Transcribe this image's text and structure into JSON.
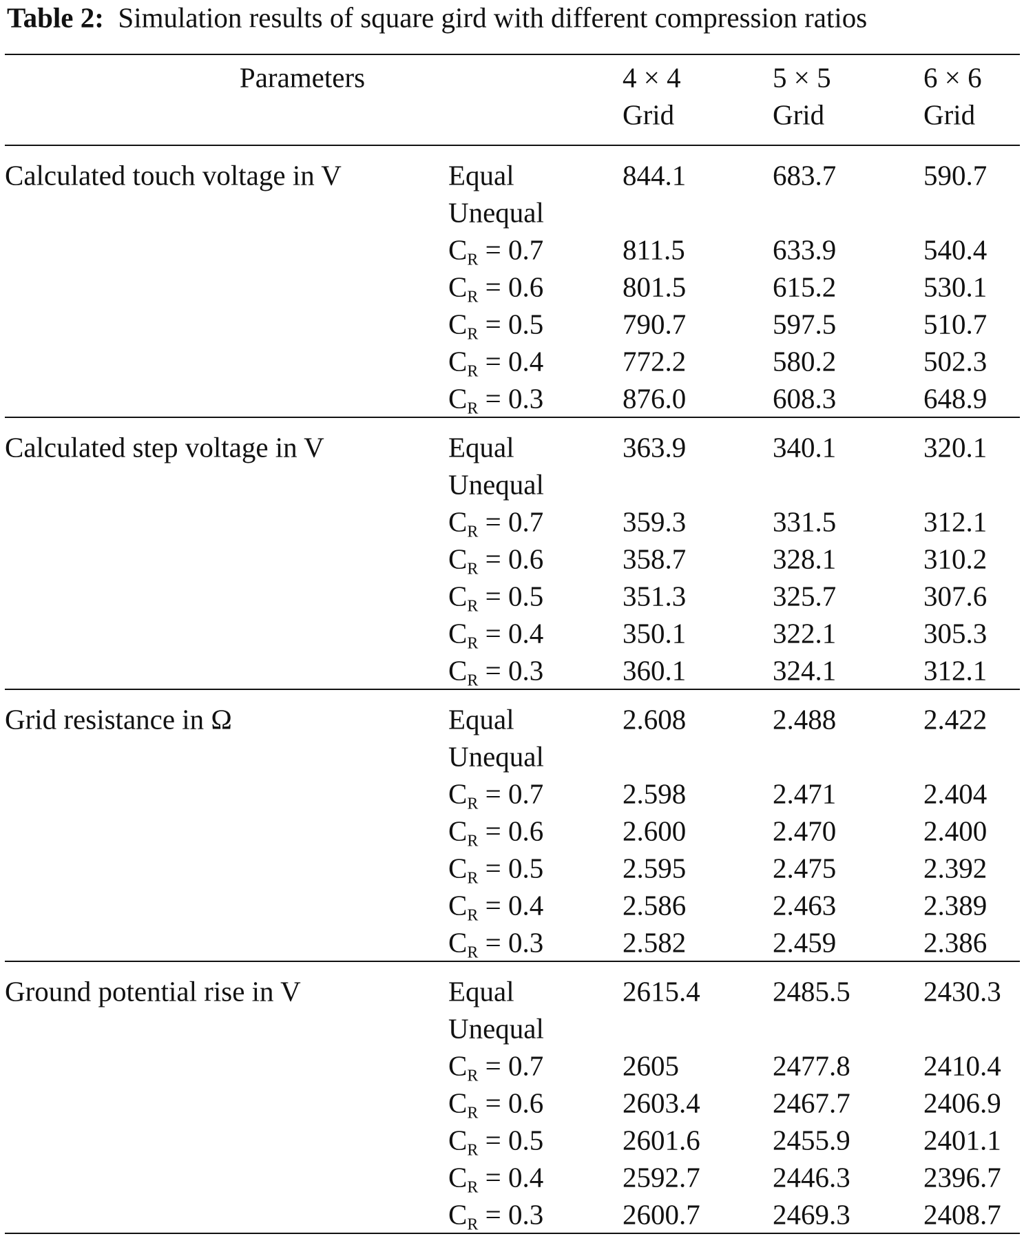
{
  "caption": {
    "label": "Table 2:",
    "text": "Simulation results of square gird with different compression ratios"
  },
  "header": {
    "parameters": "Parameters",
    "columns": [
      {
        "size": "4 × 4",
        "unit": "Grid"
      },
      {
        "size": "5 × 5",
        "unit": "Grid"
      },
      {
        "size": "6 × 6",
        "unit": "Grid"
      }
    ]
  },
  "groups": [
    {
      "name": "Calculated touch voltage in V",
      "rows": [
        {
          "label": "Equal",
          "values": [
            "844.1",
            "683.7",
            "590.7"
          ]
        },
        {
          "label": "Unequal"
        },
        {
          "symbol": "C",
          "sub": "R",
          "rest": "= 0.7",
          "values": [
            "811.5",
            "633.9",
            "540.4"
          ]
        },
        {
          "symbol": "C",
          "sub": "R",
          "rest": "= 0.6",
          "values": [
            "801.5",
            "615.2",
            "530.1"
          ]
        },
        {
          "symbol": "C",
          "sub": "R",
          "rest": "= 0.5",
          "values": [
            "790.7",
            "597.5",
            "510.7"
          ]
        },
        {
          "symbol": "C",
          "sub": "R",
          "rest": "= 0.4",
          "values": [
            "772.2",
            "580.2",
            "502.3"
          ]
        },
        {
          "symbol": "C",
          "sub": "R",
          "rest": "= 0.3",
          "values": [
            "876.0",
            "608.3",
            "648.9"
          ]
        }
      ]
    },
    {
      "name": "Calculated step voltage in V",
      "rows": [
        {
          "label": "Equal",
          "values": [
            "363.9",
            "340.1",
            "320.1"
          ]
        },
        {
          "label": "Unequal"
        },
        {
          "symbol": "C",
          "sub": "R",
          "rest": "= 0.7",
          "values": [
            "359.3",
            "331.5",
            "312.1"
          ]
        },
        {
          "symbol": "C",
          "sub": "R",
          "rest": "= 0.6",
          "values": [
            "358.7",
            "328.1",
            "310.2"
          ]
        },
        {
          "symbol": "C",
          "sub": "R",
          "rest": "= 0.5",
          "values": [
            "351.3",
            "325.7",
            "307.6"
          ]
        },
        {
          "symbol": "C",
          "sub": "R",
          "rest": "= 0.4",
          "values": [
            "350.1",
            "322.1",
            "305.3"
          ]
        },
        {
          "symbol": "C",
          "sub": "R",
          "rest": "= 0.3",
          "values": [
            "360.1",
            "324.1",
            "312.1"
          ]
        }
      ]
    },
    {
      "name": "Grid resistance in Ω",
      "rows": [
        {
          "label": "Equal",
          "values": [
            "2.608",
            "2.488",
            "2.422"
          ]
        },
        {
          "label": "Unequal"
        },
        {
          "symbol": "C",
          "sub": "R",
          "rest": "= 0.7",
          "values": [
            "2.598",
            "2.471",
            "2.404"
          ]
        },
        {
          "symbol": "C",
          "sub": "R",
          "rest": "= 0.6",
          "values": [
            "2.600",
            "2.470",
            "2.400"
          ]
        },
        {
          "symbol": "C",
          "sub": "R",
          "rest": "= 0.5",
          "values": [
            "2.595",
            "2.475",
            "2.392"
          ]
        },
        {
          "symbol": "C",
          "sub": "R",
          "rest": "= 0.4",
          "values": [
            "2.586",
            "2.463",
            "2.389"
          ]
        },
        {
          "symbol": "C",
          "sub": "R",
          "rest": "= 0.3",
          "values": [
            "2.582",
            "2.459",
            "2.386"
          ]
        }
      ]
    },
    {
      "name": "Ground potential rise in V",
      "rows": [
        {
          "label": "Equal",
          "values": [
            "2615.4",
            "2485.5",
            "2430.3"
          ]
        },
        {
          "label": "Unequal"
        },
        {
          "symbol": "C",
          "sub": "R",
          "rest": "= 0.7",
          "values": [
            "2605",
            "2477.8",
            "2410.4"
          ]
        },
        {
          "symbol": "C",
          "sub": "R",
          "rest": "= 0.6",
          "values": [
            "2603.4",
            "2467.7",
            "2406.9"
          ]
        },
        {
          "symbol": "C",
          "sub": "R",
          "rest": "= 0.5",
          "values": [
            "2601.6",
            "2455.9",
            "2401.1"
          ]
        },
        {
          "symbol": "C",
          "sub": "R",
          "rest": "= 0.4",
          "values": [
            "2592.7",
            "2446.3",
            "2396.7"
          ]
        },
        {
          "symbol": "C",
          "sub": "R",
          "rest": "= 0.3",
          "values": [
            "2600.7",
            "2469.3",
            "2408.7"
          ]
        }
      ]
    }
  ]
}
